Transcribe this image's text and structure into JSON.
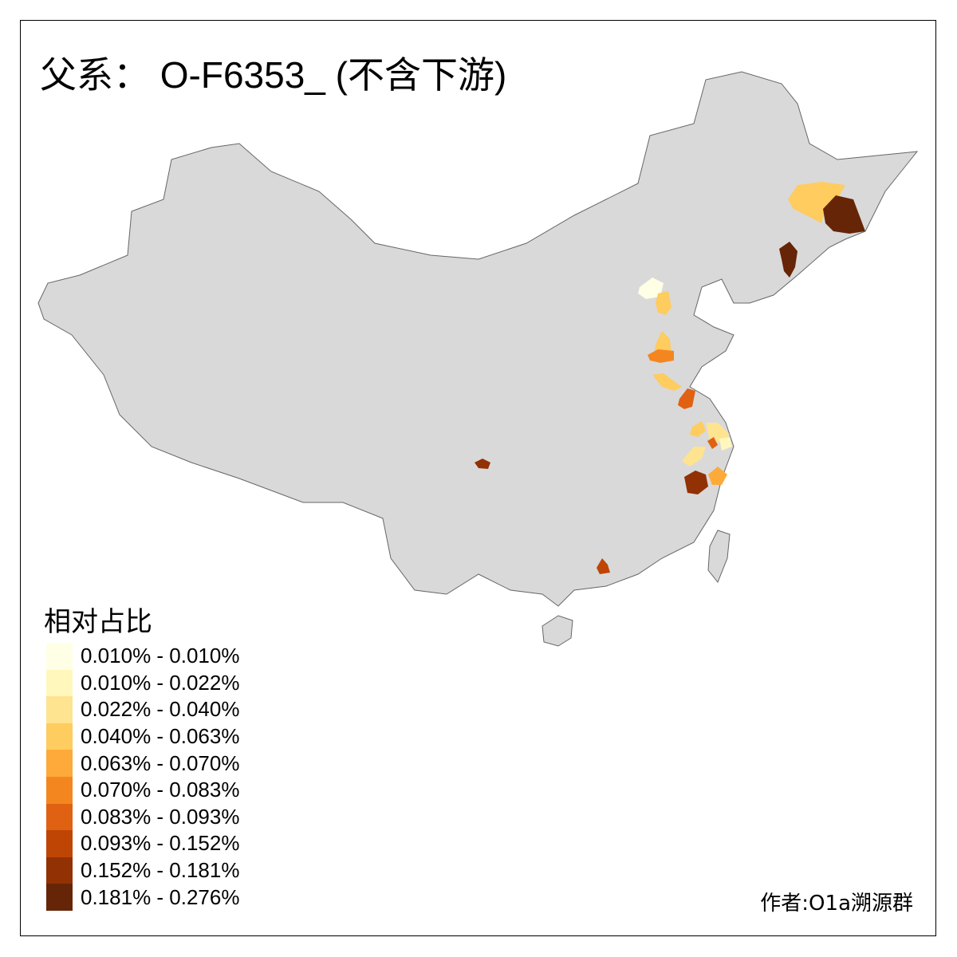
{
  "title": "父系： O-F6353_ (不含下游)",
  "legend": {
    "title": "相对占比",
    "items": [
      {
        "label": "0.010% - 0.010%",
        "color": "#FFFFE5"
      },
      {
        "label": "0.010% - 0.022%",
        "color": "#FFF7BC"
      },
      {
        "label": "0.022% - 0.040%",
        "color": "#FEE391"
      },
      {
        "label": "0.040% - 0.063%",
        "color": "#FECC5F"
      },
      {
        "label": "0.063% - 0.070%",
        "color": "#FEAA3A"
      },
      {
        "label": "0.070% - 0.083%",
        "color": "#F48620"
      },
      {
        "label": "0.083% - 0.093%",
        "color": "#E06112"
      },
      {
        "label": "0.093% - 0.152%",
        "color": "#BF4504"
      },
      {
        "label": "0.152% - 0.181%",
        "color": "#923104"
      },
      {
        "label": "0.181% - 0.276%",
        "color": "#662506"
      }
    ]
  },
  "map": {
    "base_color": "#D9D9D9",
    "border_color": "#666666",
    "no_data": "gray"
  },
  "author": "作者:O1a溯源群"
}
